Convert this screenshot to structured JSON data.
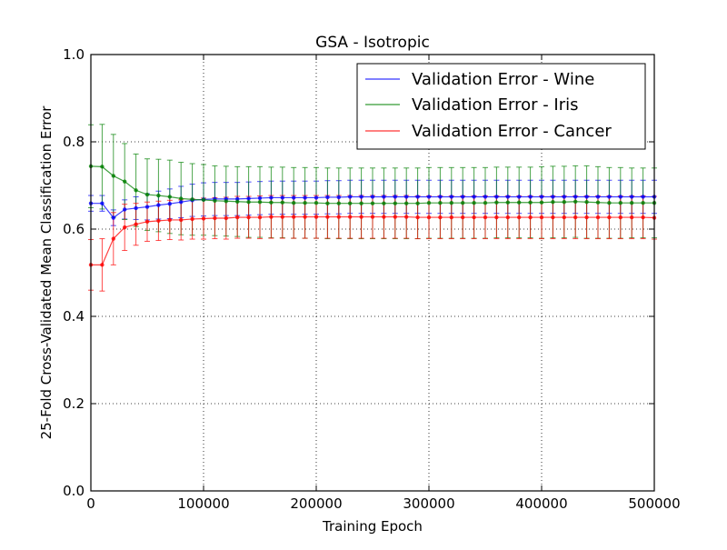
{
  "chart_data": {
    "type": "line",
    "title": "GSA - Isotropic",
    "xlabel": "Training Epoch",
    "ylabel": "25-Fold Cross-Validated Mean Classification Error",
    "xlim": [
      0,
      500000
    ],
    "ylim": [
      0.0,
      1.0
    ],
    "x_ticks": [
      0,
      100000,
      200000,
      300000,
      400000,
      500000
    ],
    "x_tick_labels": [
      "0",
      "100000",
      "200000",
      "300000",
      "400000",
      "500000"
    ],
    "y_ticks": [
      0.0,
      0.2,
      0.4,
      0.6,
      0.8,
      1.0
    ],
    "y_tick_labels": [
      "0.0",
      "0.2",
      "0.4",
      "0.6",
      "0.8",
      "1.0"
    ],
    "grid": true,
    "legend_position": "top-right",
    "x": [
      0,
      10000,
      20000,
      30000,
      40000,
      50000,
      60000,
      70000,
      80000,
      90000,
      100000,
      110000,
      120000,
      130000,
      140000,
      150000,
      160000,
      170000,
      180000,
      190000,
      200000,
      210000,
      220000,
      230000,
      240000,
      250000,
      260000,
      270000,
      280000,
      290000,
      300000,
      310000,
      320000,
      330000,
      340000,
      350000,
      360000,
      370000,
      380000,
      390000,
      400000,
      410000,
      420000,
      430000,
      440000,
      450000,
      460000,
      470000,
      480000,
      490000,
      500000
    ],
    "series": [
      {
        "name": "Validation Error - Wine",
        "color": "#0000ff",
        "values": [
          0.659,
          0.659,
          0.626,
          0.645,
          0.648,
          0.651,
          0.655,
          0.658,
          0.662,
          0.666,
          0.668,
          0.669,
          0.669,
          0.669,
          0.67,
          0.671,
          0.672,
          0.672,
          0.672,
          0.672,
          0.672,
          0.673,
          0.673,
          0.674,
          0.674,
          0.674,
          0.674,
          0.674,
          0.674,
          0.674,
          0.674,
          0.674,
          0.674,
          0.674,
          0.674,
          0.674,
          0.674,
          0.674,
          0.674,
          0.674,
          0.674,
          0.674,
          0.674,
          0.674,
          0.674,
          0.674,
          0.674,
          0.674,
          0.674,
          0.674,
          0.674
        ],
        "error": [
          0.018,
          0.018,
          0.018,
          0.022,
          0.026,
          0.03,
          0.032,
          0.034,
          0.036,
          0.037,
          0.038,
          0.038,
          0.038,
          0.038,
          0.038,
          0.038,
          0.038,
          0.038,
          0.038,
          0.038,
          0.038,
          0.038,
          0.038,
          0.038,
          0.038,
          0.038,
          0.038,
          0.038,
          0.038,
          0.038,
          0.038,
          0.038,
          0.038,
          0.038,
          0.038,
          0.038,
          0.038,
          0.038,
          0.038,
          0.038,
          0.038,
          0.038,
          0.038,
          0.038,
          0.038,
          0.038,
          0.038,
          0.038,
          0.038,
          0.038,
          0.038
        ]
      },
      {
        "name": "Validation Error - Iris",
        "color": "#008000",
        "values": [
          0.744,
          0.743,
          0.722,
          0.709,
          0.689,
          0.679,
          0.677,
          0.674,
          0.67,
          0.668,
          0.667,
          0.665,
          0.664,
          0.663,
          0.662,
          0.662,
          0.661,
          0.661,
          0.66,
          0.66,
          0.66,
          0.659,
          0.659,
          0.659,
          0.659,
          0.659,
          0.659,
          0.659,
          0.659,
          0.659,
          0.66,
          0.66,
          0.66,
          0.66,
          0.66,
          0.66,
          0.661,
          0.661,
          0.661,
          0.661,
          0.661,
          0.662,
          0.662,
          0.663,
          0.662,
          0.661,
          0.66,
          0.66,
          0.66,
          0.66,
          0.66
        ],
        "error": [
          0.095,
          0.097,
          0.095,
          0.087,
          0.083,
          0.082,
          0.083,
          0.084,
          0.083,
          0.082,
          0.081,
          0.08,
          0.08,
          0.08,
          0.081,
          0.081,
          0.081,
          0.081,
          0.081,
          0.081,
          0.081,
          0.081,
          0.081,
          0.081,
          0.081,
          0.081,
          0.081,
          0.081,
          0.081,
          0.081,
          0.081,
          0.081,
          0.081,
          0.081,
          0.081,
          0.081,
          0.081,
          0.081,
          0.081,
          0.081,
          0.082,
          0.082,
          0.082,
          0.082,
          0.083,
          0.082,
          0.081,
          0.081,
          0.08,
          0.08,
          0.08
        ]
      },
      {
        "name": "Validation Error - Cancer",
        "color": "#ff0000",
        "values": [
          0.518,
          0.518,
          0.578,
          0.604,
          0.611,
          0.617,
          0.619,
          0.621,
          0.621,
          0.623,
          0.624,
          0.625,
          0.625,
          0.627,
          0.627,
          0.627,
          0.628,
          0.628,
          0.628,
          0.628,
          0.628,
          0.628,
          0.628,
          0.628,
          0.628,
          0.628,
          0.628,
          0.628,
          0.628,
          0.627,
          0.627,
          0.627,
          0.627,
          0.627,
          0.627,
          0.627,
          0.627,
          0.627,
          0.627,
          0.627,
          0.627,
          0.627,
          0.627,
          0.627,
          0.627,
          0.627,
          0.627,
          0.627,
          0.627,
          0.627,
          0.626
        ],
        "error": [
          0.058,
          0.06,
          0.06,
          0.053,
          0.048,
          0.045,
          0.045,
          0.045,
          0.046,
          0.046,
          0.047,
          0.047,
          0.048,
          0.048,
          0.048,
          0.049,
          0.049,
          0.049,
          0.049,
          0.049,
          0.049,
          0.049,
          0.049,
          0.049,
          0.049,
          0.049,
          0.049,
          0.049,
          0.049,
          0.049,
          0.049,
          0.049,
          0.049,
          0.049,
          0.049,
          0.049,
          0.049,
          0.049,
          0.049,
          0.049,
          0.049,
          0.049,
          0.049,
          0.049,
          0.049,
          0.049,
          0.049,
          0.049,
          0.049,
          0.049,
          0.049
        ]
      }
    ]
  }
}
